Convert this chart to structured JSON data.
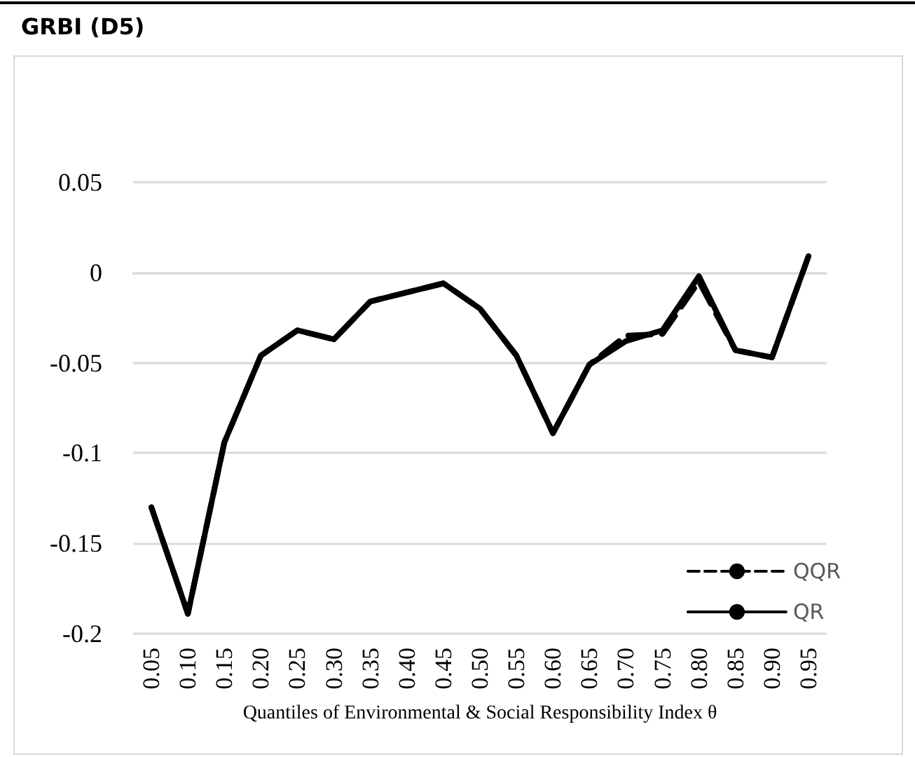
{
  "chart_data": {
    "type": "line",
    "title": "GRBI (D5)",
    "xlabel": "Quantiles of Environmental & Social Responsibility Index θ",
    "categories": [
      "0.05",
      "0.10",
      "0.15",
      "0.20",
      "0.25",
      "0.30",
      "0.35",
      "0.40",
      "0.45",
      "0.50",
      "0.55",
      "0.60",
      "0.65",
      "0.70",
      "0.75",
      "0.80",
      "0.85",
      "0.90",
      "0.95"
    ],
    "series": [
      {
        "name": "QQR",
        "color": "#000000",
        "line_style": "dashed",
        "values": [
          -0.13,
          -0.189,
          -0.094,
          -0.046,
          -0.032,
          -0.037,
          -0.016,
          -0.011,
          -0.006,
          -0.02,
          -0.046,
          -0.089,
          -0.051,
          -0.035,
          -0.034,
          -0.005,
          -0.043,
          -0.047,
          0.009
        ]
      },
      {
        "name": "QR",
        "color": "#000000",
        "line_style": "solid",
        "values": [
          -0.13,
          -0.189,
          -0.094,
          -0.046,
          -0.032,
          -0.037,
          -0.016,
          -0.011,
          -0.006,
          -0.02,
          -0.046,
          -0.089,
          -0.051,
          -0.038,
          -0.032,
          -0.002,
          -0.043,
          -0.047,
          0.009
        ]
      }
    ],
    "ylim": [
      -0.2,
      0.05
    ],
    "yticks": [
      -0.2,
      -0.15,
      -0.1,
      -0.05,
      0,
      0.05
    ],
    "grid": "y",
    "legend": "bottom right",
    "marker": "none"
  }
}
